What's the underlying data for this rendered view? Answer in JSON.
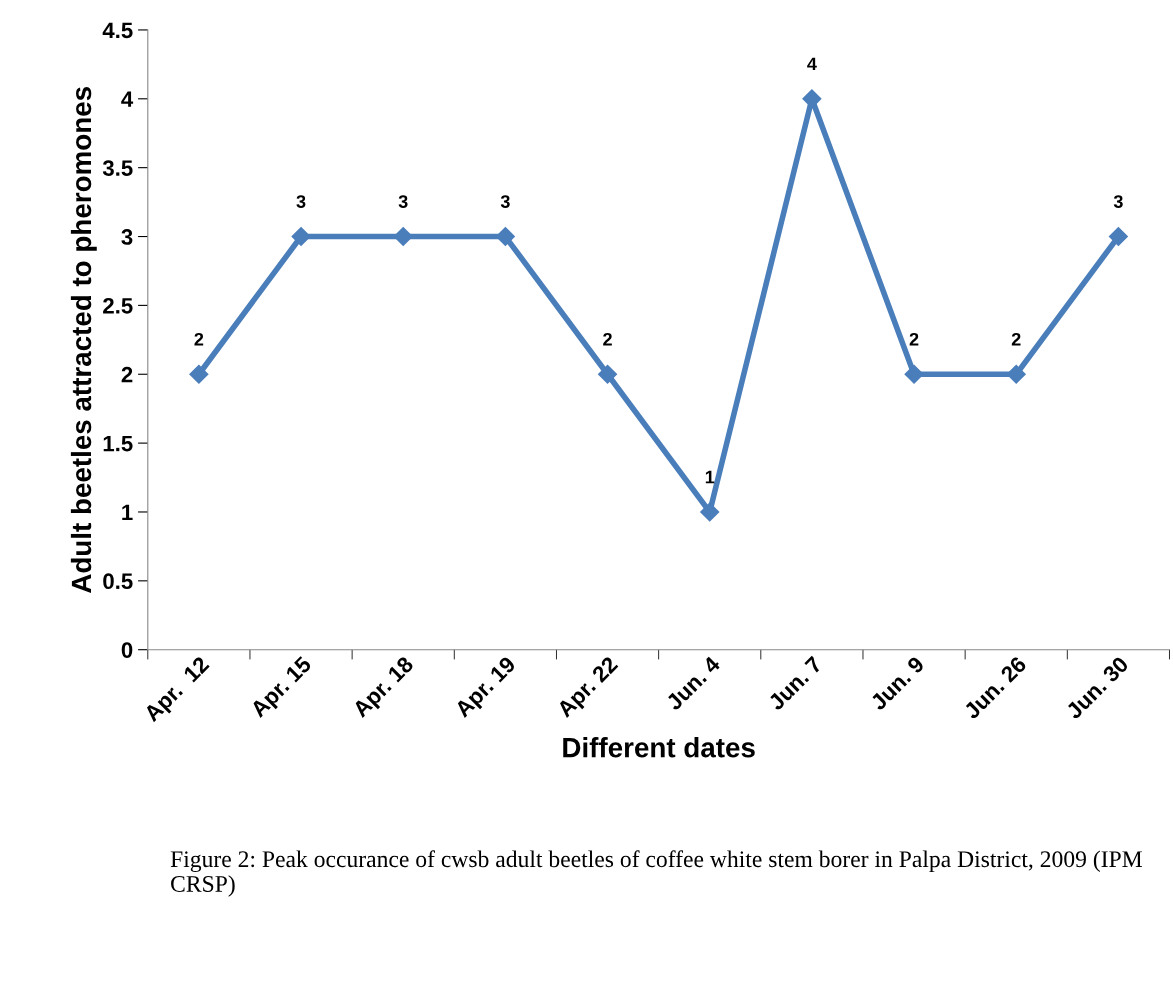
{
  "chart_data": {
    "type": "line",
    "xlabel": "Different dates",
    "ylabel": "Adult beetles attracted to pheromones",
    "categories": [
      "Apr.  12",
      "Apr. 15",
      "Apr. 18",
      "Apr. 19",
      "Apr. 22",
      "Jun. 4",
      "Jun. 7",
      "Jun. 9",
      "Jun. 26",
      "Jun. 30"
    ],
    "series": [
      {
        "color": "#4a7ebb",
        "values": [
          2,
          3,
          3,
          3,
          2,
          1,
          4,
          2,
          2,
          3
        ]
      }
    ],
    "ylim": [
      0,
      4.5
    ],
    "yticks": [
      0,
      0.5,
      1,
      1.5,
      2,
      2.5,
      3,
      3.5,
      4,
      4.5
    ],
    "data_labels": true,
    "marker": "diamond",
    "line_style": "solid",
    "grid": false,
    "legend": false,
    "annotations": [
      "Figure 2: Peak occurance of cwsb adult beetles of coffee white stem borer in Palpa District, 2009 (IPM CRSP)"
    ]
  }
}
